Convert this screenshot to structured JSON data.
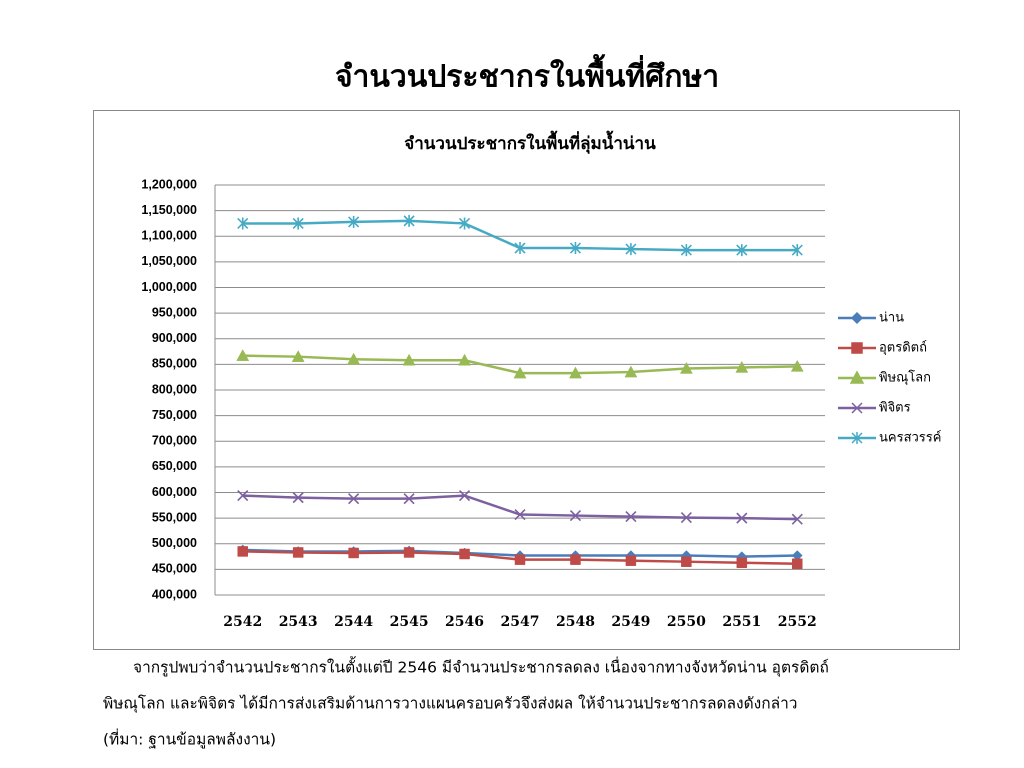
{
  "slide_title": "จำนวนประชากรในพื้นที่ศึกษา",
  "chart_data": {
    "type": "line",
    "title": "จำนวนประชากรในพื้นที่ลุ่มน้ำน่าน",
    "categories": [
      "2542",
      "2543",
      "2544",
      "2545",
      "2546",
      "2547",
      "2548",
      "2549",
      "2550",
      "2551",
      "2552"
    ],
    "series": [
      {
        "name": "น่าน",
        "color": "#4a7ebb",
        "marker": "diamond",
        "values": [
          488000,
          485000,
          485000,
          486000,
          482000,
          477000,
          477000,
          477000,
          477000,
          475000,
          477000
        ]
      },
      {
        "name": "อุตรดิตถ์",
        "color": "#be4b48",
        "marker": "square",
        "values": [
          485000,
          483000,
          482000,
          483000,
          480000,
          469000,
          469000,
          467000,
          465000,
          463000,
          461000
        ]
      },
      {
        "name": "พิษณุโลก",
        "color": "#98b954",
        "marker": "triangle",
        "values": [
          867000,
          865000,
          860000,
          858000,
          858000,
          833000,
          833000,
          835000,
          842000,
          844000,
          846000
        ]
      },
      {
        "name": "พิจิตร",
        "color": "#7d60a0",
        "marker": "x",
        "values": [
          594000,
          590000,
          588000,
          588000,
          594000,
          557000,
          555000,
          553000,
          551000,
          550000,
          548000
        ]
      },
      {
        "name": "นครสวรรค์",
        "color": "#46aac5",
        "marker": "star",
        "values": [
          1125000,
          1125000,
          1128000,
          1130000,
          1125000,
          1077000,
          1077000,
          1075000,
          1073000,
          1073000,
          1073000
        ]
      }
    ],
    "ylim": [
      400000,
      1200000
    ],
    "yticks": [
      {
        "value": 400000,
        "label": "400,000"
      },
      {
        "value": 450000,
        "label": "450,000"
      },
      {
        "value": 500000,
        "label": "500,000"
      },
      {
        "value": 550000,
        "label": "550,000"
      },
      {
        "value": 600000,
        "label": "600,000"
      },
      {
        "value": 650000,
        "label": "650,000"
      },
      {
        "value": 700000,
        "label": "700,000"
      },
      {
        "value": 750000,
        "label": "750,000"
      },
      {
        "value": 800000,
        "label": "800,000"
      },
      {
        "value": 850000,
        "label": "850,000"
      },
      {
        "value": 900000,
        "label": "900,000"
      },
      {
        "value": 950000,
        "label": "950,000"
      },
      {
        "value": 1000000,
        "label": "1,000,000"
      },
      {
        "value": 1050000,
        "label": "1,050,000"
      },
      {
        "value": 1100000,
        "label": "1,100,000"
      },
      {
        "value": 1150000,
        "label": "1,150,000"
      },
      {
        "value": 1200000,
        "label": "1,200,000"
      }
    ],
    "grid": true,
    "legend": "right"
  },
  "notes": [
    "จากรูปพบว่าจำนวนประชากรในตั้งแต่ปี 2546  มีจำนวนประชากรลดลง เนื่องจากทางจังหวัดน่าน อุตรดิตถ์",
    "พิษณุโลก และพิจิตร ได้มีการส่งเสริมด้านการวางแผนครอบครัวจึงส่งผล ให้จำนวนประชากรลดลงดังกล่าว",
    "(ที่มา: ฐานข้อมูลพลังงาน)"
  ]
}
